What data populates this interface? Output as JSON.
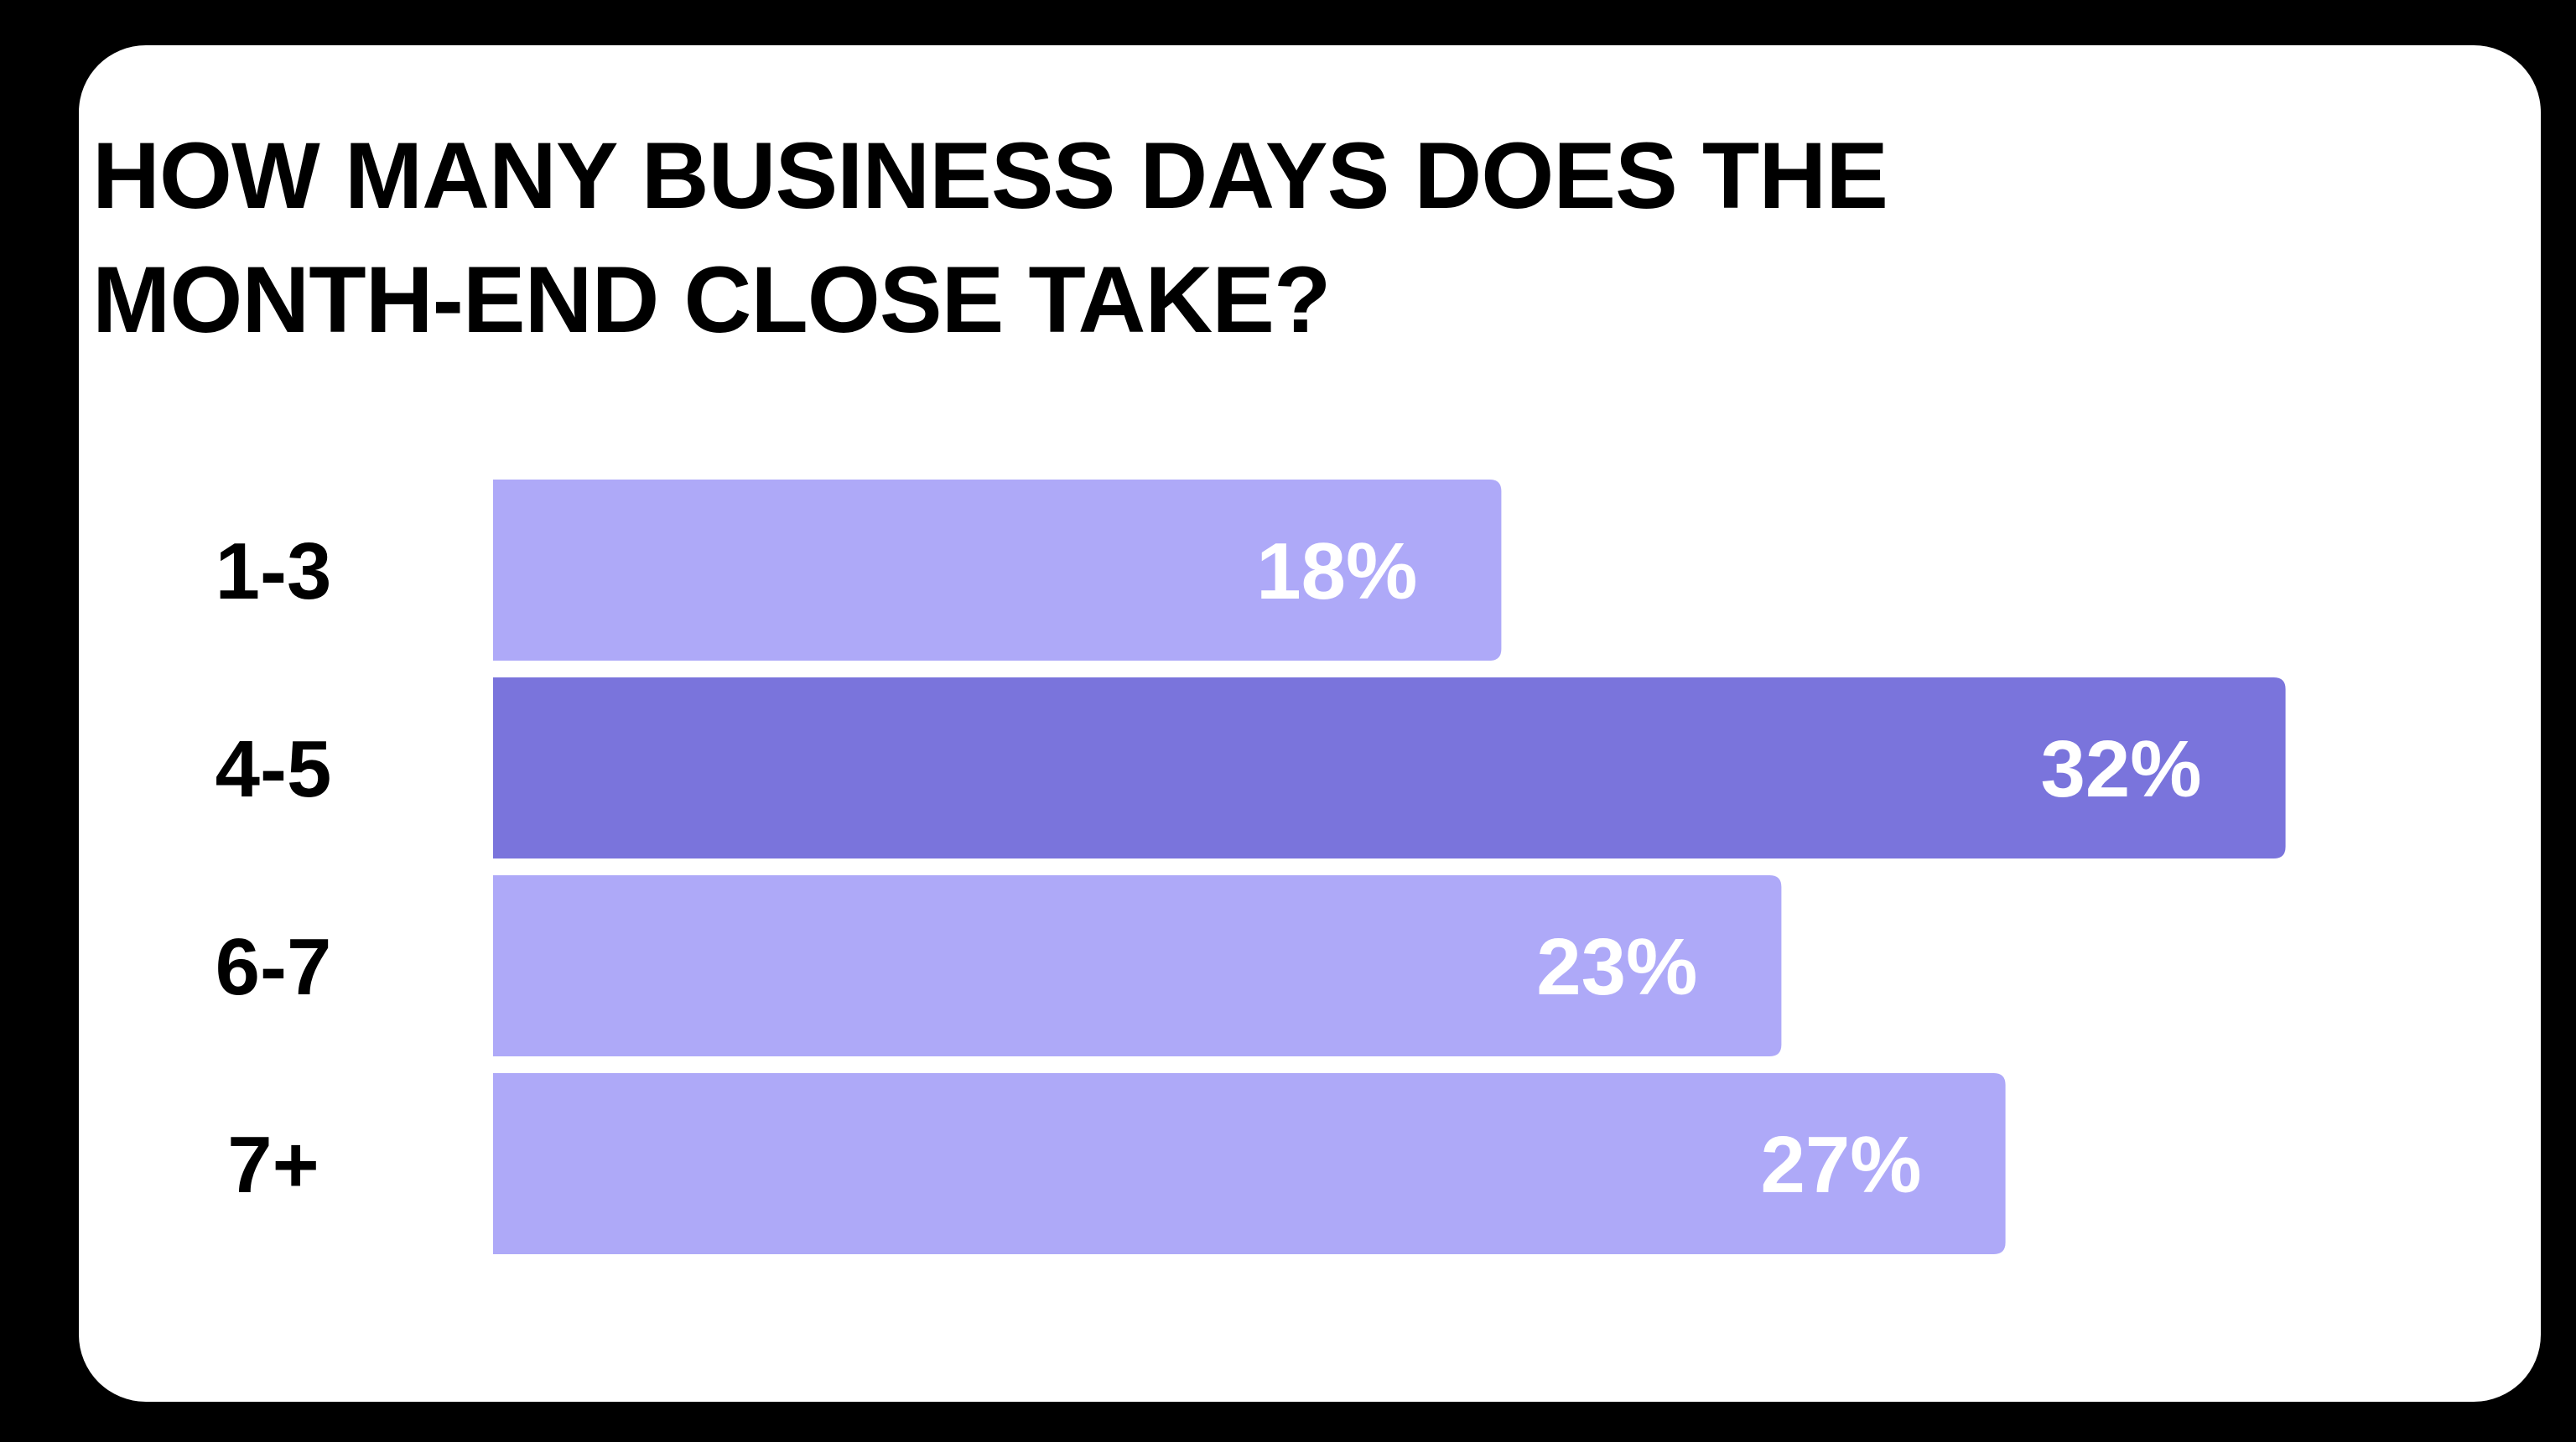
{
  "chart_data": {
    "type": "bar",
    "orientation": "horizontal",
    "title": "HOW MANY BUSINESS DAYS DOES THE MONTH-END CLOSE TAKE?",
    "categories": [
      "1-3",
      "4-5",
      "6-7",
      "7+"
    ],
    "values": [
      18,
      32,
      23,
      27
    ],
    "value_labels": [
      "18%",
      "32%",
      "23%",
      "27%"
    ],
    "highlight_index": 1,
    "colors": {
      "bar": "#aea9f8",
      "highlight": "#7a74dc",
      "card": "#ffffff",
      "background": "#000000"
    },
    "grid": false,
    "legend": "none"
  }
}
